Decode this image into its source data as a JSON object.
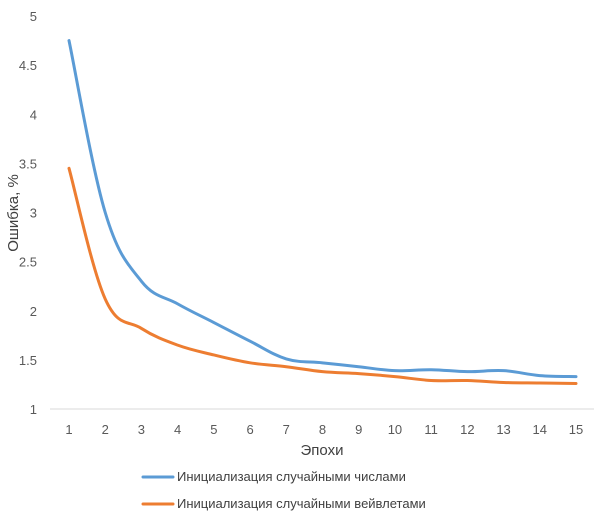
{
  "chart_data": {
    "type": "line",
    "xlabel": "Эпохи",
    "ylabel": "Ошибка, %",
    "x": [
      1,
      2,
      3,
      4,
      5,
      6,
      7,
      8,
      9,
      10,
      11,
      12,
      13,
      14,
      15
    ],
    "x_tick_labels": [
      "1",
      "2",
      "3",
      "4",
      "5",
      "6",
      "7",
      "8",
      "9",
      "10",
      "11",
      "12",
      "13",
      "14",
      "15"
    ],
    "ylim": [
      1,
      5
    ],
    "y_tick_labels": [
      "1",
      "1.5",
      "2",
      "2.5",
      "3",
      "3.5",
      "4",
      "4.5",
      "5"
    ],
    "grid": false,
    "legend_position": "bottom",
    "series": [
      {
        "name": "Инициализация случайными числами",
        "color": "#5B9BD5",
        "values": [
          4.75,
          3.0,
          2.3,
          2.07,
          1.88,
          1.69,
          1.51,
          1.47,
          1.43,
          1.39,
          1.4,
          1.38,
          1.39,
          1.34,
          1.33
        ]
      },
      {
        "name": "Инициализация случайными вейвлетами",
        "color": "#ED7D31",
        "values": [
          3.45,
          2.12,
          1.82,
          1.65,
          1.55,
          1.47,
          1.43,
          1.38,
          1.36,
          1.33,
          1.29,
          1.29,
          1.27,
          1.265,
          1.26
        ]
      }
    ]
  }
}
